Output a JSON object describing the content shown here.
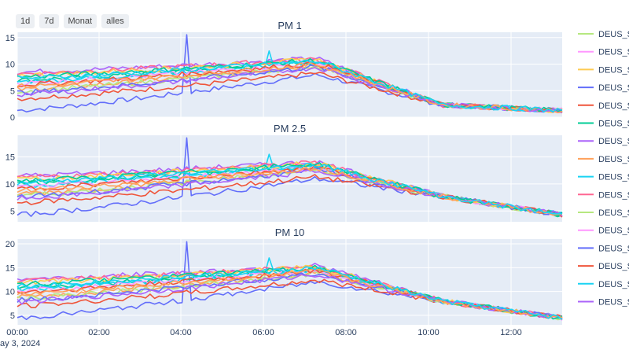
{
  "range_buttons": [
    "1d",
    "7d",
    "Monat",
    "alles"
  ],
  "colors": [
    "#636efa",
    "#ef553b",
    "#00cc96",
    "#ab63fa",
    "#ffa15a",
    "#19d3f3",
    "#ff6692",
    "#b6e880",
    "#ff97ff",
    "#fecb52"
  ],
  "chart_data": [
    {
      "type": "line",
      "title": "PM 1",
      "x_ticks": [
        "00:00",
        "02:00",
        "04:00",
        "06:00",
        "08:00",
        "10:00",
        "12:00"
      ],
      "y_ticks": [
        0,
        5,
        10,
        15
      ],
      "ylim": [
        0,
        16
      ],
      "xlim": [
        0,
        790
      ],
      "grid": true
    },
    {
      "type": "line",
      "title": "PM 2.5",
      "x_ticks": [
        "00:00",
        "02:00",
        "04:00",
        "06:00",
        "08:00",
        "10:00",
        "12:00"
      ],
      "y_ticks": [
        5,
        10,
        15
      ],
      "ylim": [
        3,
        19
      ],
      "xlim": [
        0,
        790
      ],
      "grid": true
    },
    {
      "type": "line",
      "title": "PM 10",
      "x_ticks": [
        "00:00",
        "02:00",
        "04:00",
        "06:00",
        "08:00",
        "10:00",
        "12:00"
      ],
      "y_ticks": [
        5,
        10,
        15,
        20
      ],
      "ylim": [
        3,
        21
      ],
      "xlim": [
        0,
        790
      ],
      "grid": true
    }
  ],
  "x_date_label": "ay 3, 2024",
  "legend": {
    "placement": "right",
    "entries": [
      {
        "label": "DEUS_S",
        "color": "#b6e880"
      },
      {
        "label": "DEUS_S",
        "color": "#ff97ff"
      },
      {
        "label": "DEUS_S",
        "color": "#fecb52"
      },
      {
        "label": "DEUS_S",
        "color": "#636efa"
      },
      {
        "label": "DEUS_S",
        "color": "#ef553b"
      },
      {
        "label": "DEUS_S",
        "color": "#00cc96"
      },
      {
        "label": "DEUS_S",
        "color": "#ab63fa"
      },
      {
        "label": "DEUS_S",
        "color": "#ffa15a"
      },
      {
        "label": "DEUS_S",
        "color": "#19d3f3"
      },
      {
        "label": "DEUS_S",
        "color": "#ff6692"
      },
      {
        "label": "DEUS_S",
        "color": "#b6e880"
      },
      {
        "label": "DEUS_S",
        "color": "#ff97ff"
      },
      {
        "label": "DEUS_S",
        "color": "#636efa"
      },
      {
        "label": "DEUS_S",
        "color": "#ef553b"
      },
      {
        "label": "DEUS_S",
        "color": "#19d3f3"
      },
      {
        "label": "DEUS_S",
        "color": "#ab63fa"
      }
    ]
  }
}
